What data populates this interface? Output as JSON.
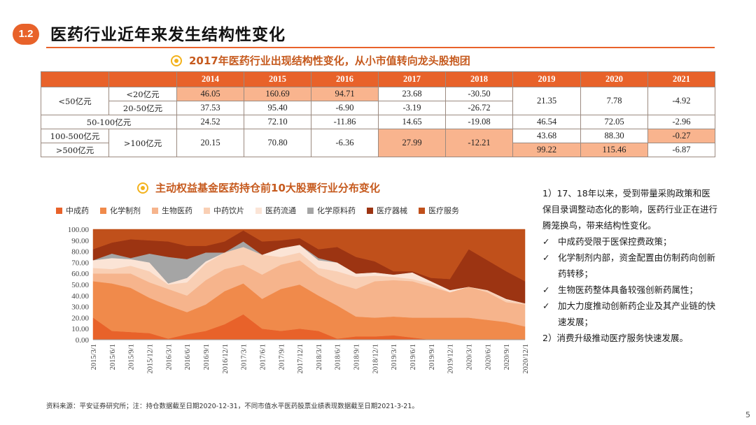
{
  "header": {
    "badge": "1.2",
    "title": "医药行业近年来发生结构性变化"
  },
  "table_section": {
    "heading": "2017年医药行业出现结构性变化，从小市值转向龙头股抱团",
    "years": [
      "2014",
      "2015",
      "2016",
      "2017",
      "2018",
      "2019",
      "2020",
      "2021"
    ],
    "labels": {
      "lt50": "<50亿元",
      "lt20": "<20亿元",
      "r20_50": "20-50亿元",
      "r50_100": "50-100亿元",
      "r100_500": "100-500亿元",
      "gt500": ">500亿元",
      "gt100": ">100亿元"
    },
    "rows": {
      "lt20": [
        "46.05",
        "160.69",
        "94.71",
        "23.68",
        "-30.50"
      ],
      "r20_50": [
        "37.53",
        "95.40",
        "-6.90",
        "-3.19",
        "-26.72"
      ],
      "lt50_late": [
        "21.35",
        "7.78",
        "-4.92"
      ],
      "r50_100": [
        "24.52",
        "72.10",
        "-11.86",
        "14.65",
        "-19.08",
        "46.54",
        "72.05",
        "-2.96"
      ],
      "gt100_early": [
        "20.15",
        "70.80",
        "-6.36",
        "27.99",
        "-12.21"
      ],
      "r100_500_late": [
        "43.68",
        "88.30",
        "-0.27"
      ],
      "gt500_late": [
        "99.22",
        "115.46",
        "-6.87"
      ]
    }
  },
  "chart_section": {
    "heading": "主动权益基金医药持仓前10大股票行业分布变化"
  },
  "chart_data": {
    "type": "area",
    "stacked": true,
    "title": "主动权益基金医药持仓前10大股票行业分布变化",
    "ylim": [
      0,
      100
    ],
    "y_ticks": [
      "0.00",
      "10.00",
      "20.00",
      "30.00",
      "40.00",
      "50.00",
      "60.00",
      "70.00",
      "80.00",
      "90.00",
      "100.00"
    ],
    "x": [
      "2015/3/1",
      "2015/6/1",
      "2015/9/1",
      "2015/12/1",
      "2016/3/1",
      "2016/6/1",
      "2016/9/1",
      "2016/12/1",
      "2017/3/1",
      "2017/6/1",
      "2017/9/1",
      "2017/12/1",
      "2018/3/1",
      "2018/6/1",
      "2018/9/1",
      "2018/12/1",
      "2019/3/1",
      "2019/6/1",
      "2019/9/1",
      "2019/12/1",
      "2020/3/1",
      "2020/6/1",
      "2020/9/1",
      "2020/12/1"
    ],
    "series": [
      {
        "name": "中成药",
        "color": "#e8622a",
        "values": [
          20,
          8,
          7,
          6,
          1,
          5,
          8,
          14,
          23,
          10,
          8,
          10,
          8,
          1,
          3,
          3,
          4,
          2,
          0,
          0,
          0,
          0,
          0,
          0
        ]
      },
      {
        "name": "化学制剂",
        "color": "#f08a4b",
        "values": [
          33,
          43,
          40,
          32,
          30,
          20,
          24,
          30,
          28,
          27,
          38,
          40,
          32,
          30,
          18,
          17,
          17,
          18,
          20,
          20,
          20,
          18,
          16,
          12
        ]
      },
      {
        "name": "生物医药",
        "color": "#f6b48c",
        "values": [
          7,
          9,
          13,
          14,
          15,
          15,
          22,
          20,
          17,
          22,
          22,
          22,
          19,
          20,
          25,
          33,
          33,
          33,
          28,
          23,
          28,
          25,
          18,
          20
        ]
      },
      {
        "name": "中药饮片",
        "color": "#f9cfb4",
        "values": [
          5,
          4,
          7,
          10,
          4,
          12,
          15,
          15,
          16,
          18,
          7,
          7,
          6,
          11,
          11,
          5,
          3,
          2,
          3,
          0,
          0,
          2,
          2,
          1
        ]
      },
      {
        "name": "医药流通",
        "color": "#fbe4d6",
        "values": [
          7,
          10,
          6,
          8,
          1,
          4,
          2,
          0,
          0,
          0,
          8,
          7,
          7,
          8,
          3,
          3,
          2,
          6,
          2,
          2,
          0,
          0,
          1,
          0
        ]
      },
      {
        "name": "化学原料药",
        "color": "#a5a5a5",
        "values": [
          0,
          4,
          1,
          8,
          24,
          17,
          8,
          0,
          5,
          0,
          0,
          0,
          2,
          0,
          0,
          0,
          0,
          0,
          0,
          0,
          0,
          0,
          0,
          0
        ]
      },
      {
        "name": "医疗器械",
        "color": "#9c3412",
        "values": [
          10,
          10,
          17,
          12,
          14,
          12,
          6,
          10,
          10,
          12,
          7,
          6,
          8,
          14,
          15,
          10,
          3,
          1,
          3,
          10,
          34,
          27,
          25,
          20
        ]
      },
      {
        "name": "医疗服务",
        "color": "#c0501b",
        "values": [
          18,
          12,
          9,
          10,
          11,
          15,
          15,
          11,
          1,
          11,
          10,
          8,
          18,
          16,
          25,
          29,
          38,
          38,
          44,
          45,
          18,
          28,
          38,
          47
        ]
      }
    ]
  },
  "notes": {
    "intro": "1）17、18年以来，受到带量采购政策和医保目录调整动态化的影响，医药行业正在进行腾笼换鸟，带来结构性变化。",
    "bullets": [
      "中成药受限于医保控费政策；",
      "化学制剂内部，资金配置由仿制药向创新药转移；",
      "生物医药整体具备较强创新药属性；",
      "加大力度推动创新药企业及其产业链的快速发展；"
    ],
    "check": "✓",
    "outro": "2）消费升级推动医疗服务快速发展。"
  },
  "footer": {
    "source": "资料来源：平安证券研究所；注：持仓数据截至日期2020-12-31，不同市值水平医药股票业绩表现数据截至日期2021-3-21。",
    "page": "5"
  }
}
